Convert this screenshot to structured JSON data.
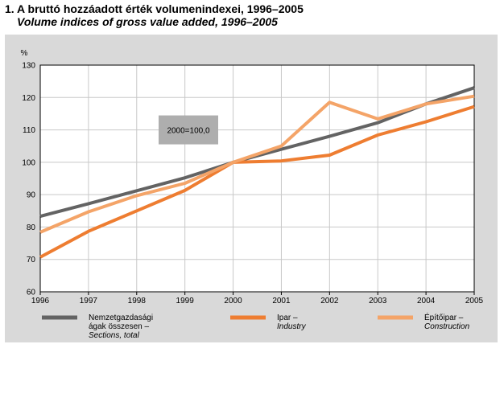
{
  "title": {
    "hungarian": "1. A bruttó hozzáadott érték volumenindexei, 1996–2005",
    "english": "Volume indices of gross value added, 1996–2005"
  },
  "chart_data": {
    "type": "line",
    "ylabel": "%",
    "ylim": [
      60,
      130
    ],
    "yticks": [
      60,
      70,
      80,
      90,
      100,
      110,
      120,
      130
    ],
    "x": [
      "1996",
      "1997",
      "1998",
      "1999",
      "2000",
      "2001",
      "2002",
      "2003",
      "2004",
      "2005"
    ],
    "annotation": "2000=100,0",
    "grid": true,
    "legend_position": "bottom",
    "series": [
      {
        "name_lines": [
          "Nemzetgazdasági",
          "ágak összesen –",
          "Sections, total"
        ],
        "color": "#636363",
        "values": [
          83.3,
          87.2,
          91.2,
          95.2,
          100.0,
          104.0,
          108.0,
          112.2,
          118.0,
          123.0
        ]
      },
      {
        "name_lines": [
          "Ipar –",
          "Industry"
        ],
        "color": "#ee7d31",
        "values": [
          70.7,
          78.7,
          85.0,
          91.3,
          100.0,
          100.4,
          102.2,
          108.4,
          112.5,
          117.2
        ]
      },
      {
        "name_lines": [
          "Építőipar –",
          "Construction"
        ],
        "color": "#f4a468",
        "values": [
          78.4,
          84.7,
          89.7,
          93.5,
          100.0,
          105.0,
          118.5,
          113.4,
          118.0,
          120.4
        ]
      }
    ]
  }
}
